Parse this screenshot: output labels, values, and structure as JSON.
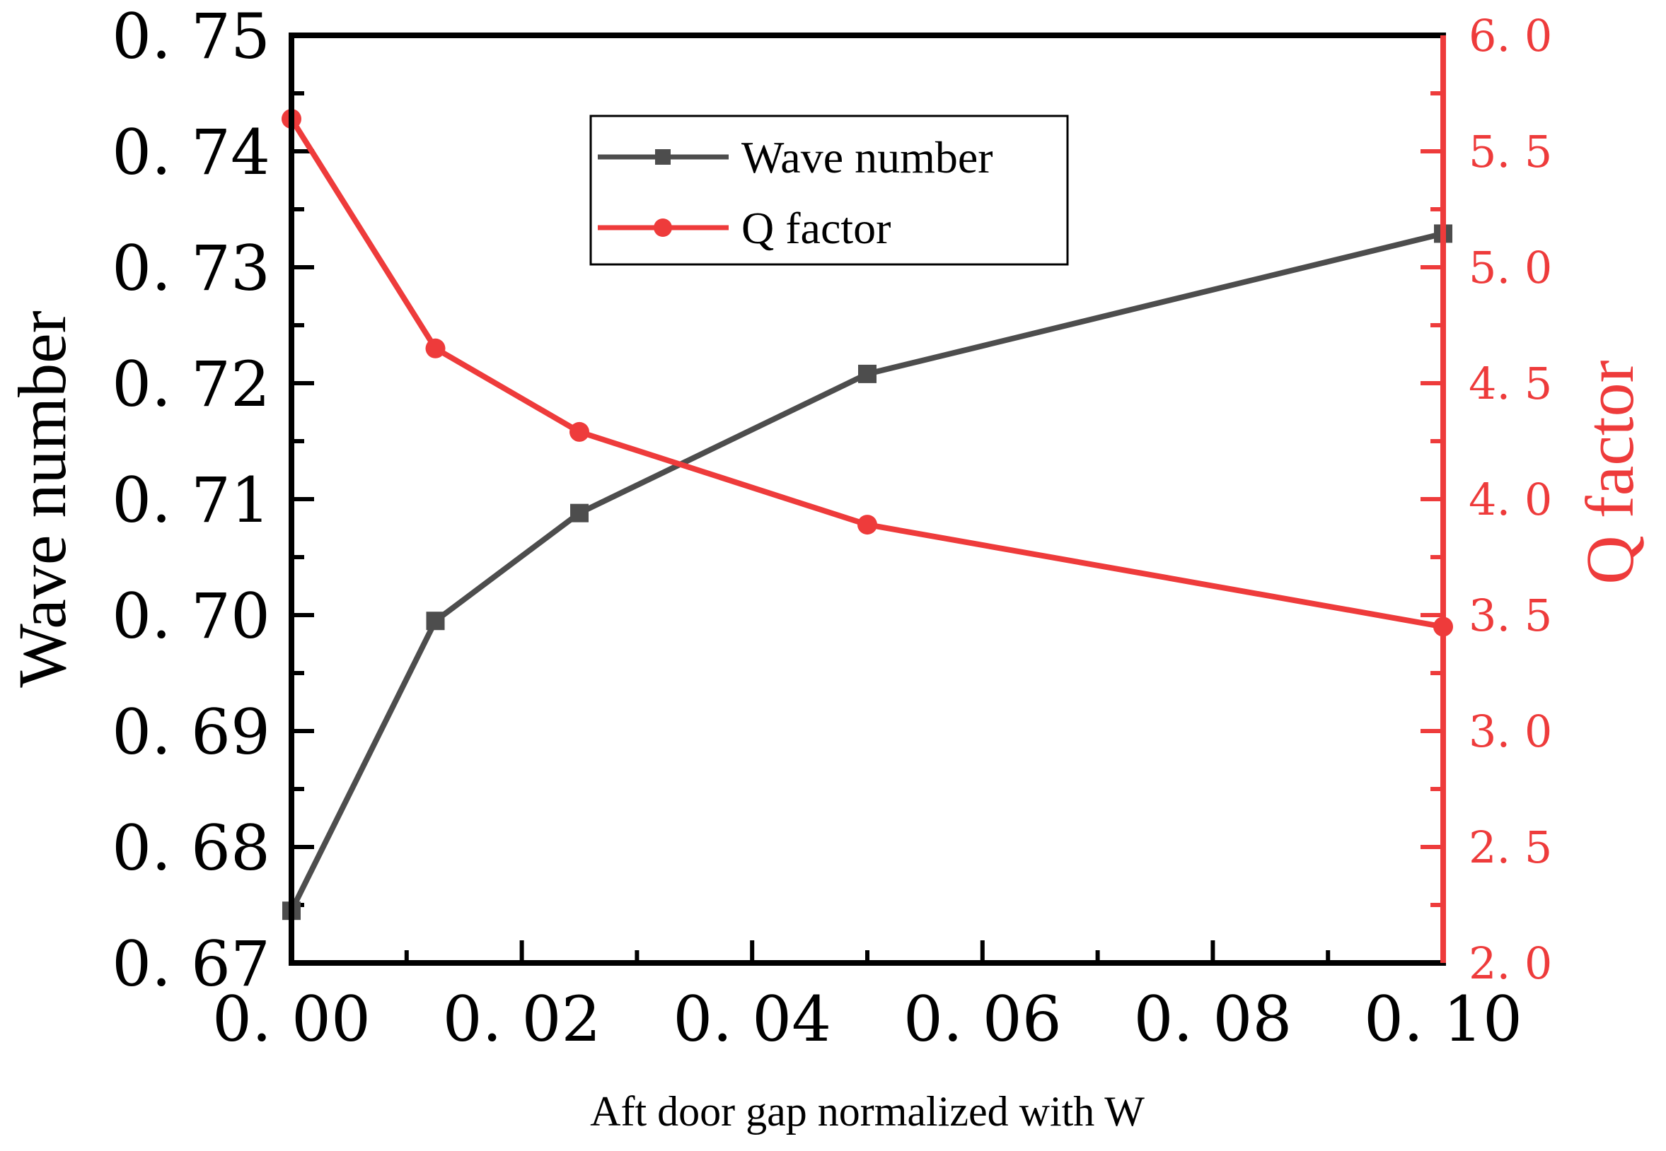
{
  "chart_data": {
    "type": "line",
    "title": "",
    "xlabel": "Aft door gap normalized with W",
    "ylabel": "Wave number",
    "y2label": "Q factor",
    "xlim": [
      0.0,
      0.1
    ],
    "ylim": [
      0.67,
      0.75
    ],
    "y2lim": [
      2.0,
      6.0
    ],
    "x_ticks": [
      "0. 00",
      "0. 02",
      "0. 04",
      "0. 06",
      "0. 08",
      "0. 10"
    ],
    "y_ticks": [
      "0. 67",
      "0. 68",
      "0. 69",
      "0. 70",
      "0. 71",
      "0. 72",
      "0. 73",
      "0. 74",
      "0. 75"
    ],
    "y2_ticks": [
      "2. 0",
      "2. 5",
      "3. 0",
      "3. 5",
      "4. 0",
      "4. 5",
      "5. 0",
      "5. 5",
      "6. 0"
    ],
    "legend_position": "top-center",
    "series": [
      {
        "name": "Wave number",
        "axis": "left",
        "marker": "square",
        "color": "#4d4d4d",
        "x": [
          0.0,
          0.0125,
          0.025,
          0.05,
          0.1
        ],
        "values": [
          0.6745,
          0.6995,
          0.7088,
          0.7208,
          0.7329
        ]
      },
      {
        "name": "Q factor",
        "axis": "right",
        "marker": "circle",
        "color": "#ee3b3b",
        "x": [
          0.0,
          0.0125,
          0.025,
          0.05,
          0.1
        ],
        "values": [
          5.64,
          4.65,
          4.29,
          3.89,
          3.45
        ]
      }
    ]
  }
}
